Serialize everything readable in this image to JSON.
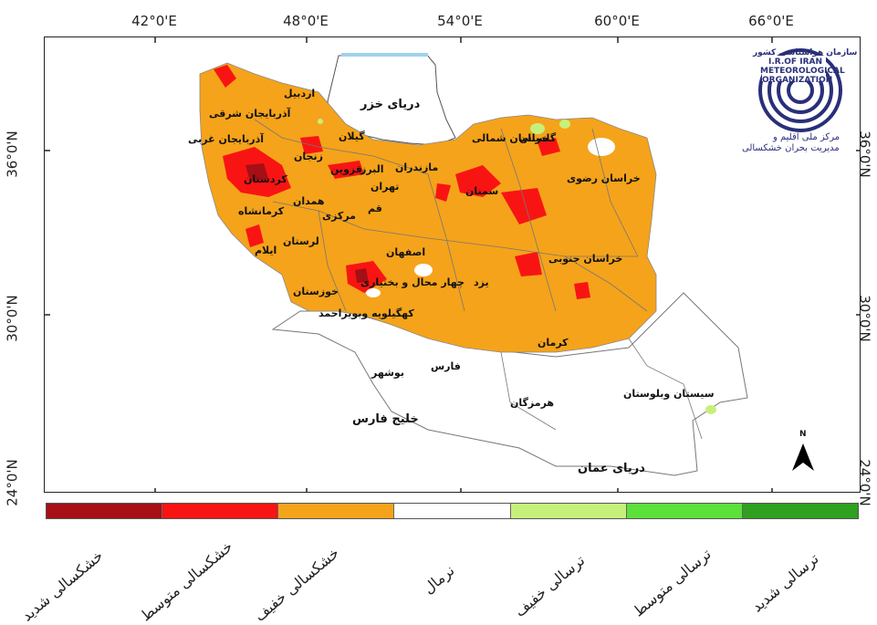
{
  "map": {
    "lon_ticks": [
      "42°0'E",
      "48°0'E",
      "54°0'E",
      "60°0'E",
      "66°0'E"
    ],
    "lat_ticks_left": [
      "36°0'N",
      "30°0'N",
      "24°0'N"
    ],
    "lat_ticks_right": [
      "36°0'N",
      "30°0'N",
      "24°0'N"
    ],
    "seas": {
      "caspian": "دریای خزر",
      "persian_gulf": "خلیج فارس",
      "oman": "دریای عمان"
    },
    "provinces": [
      "اردبیل",
      "آذربایجان شرقی",
      "آذربایجان غربی",
      "گیلان",
      "زنجان",
      "کردستان",
      "قزوین",
      "البرز",
      "مازندران",
      "تهران",
      "همدان",
      "کرمانشاه",
      "قم",
      "مرکزی",
      "لرستان",
      "ایلام",
      "اصفهان",
      "سمنان",
      "گلستان",
      "خراسان شمالی",
      "خراسان رضوی",
      "خراسان جنوبی",
      "یزد",
      "چهار محال و بختیاری",
      "خوزستان",
      "کهگیلویه وبویراحمد",
      "فارس",
      "بوشهر",
      "کرمان",
      "هرمزگان",
      "سیستان وبلوستان"
    ],
    "north_arrow": "N"
  },
  "logo": {
    "line1": "سازمان هواشناسی کشور",
    "line2": "I.R.OF IRAN",
    "line3": "METEOROLOGICAL",
    "line4": "ORGANIZATION",
    "center_fa_1": "مرکز ملی اقلیم و",
    "center_fa_2": "مدیریت بحران خشکسالی"
  },
  "legend": {
    "items": [
      {
        "label": "خشکسالی شدید",
        "color": "#a50f15"
      },
      {
        "label": "خشکسالی متوسط",
        "color": "#f91414"
      },
      {
        "label": "خشکسالی خفیف",
        "color": "#f5a31a"
      },
      {
        "label": "نرمال",
        "color": "#ffffff"
      },
      {
        "label": "ترسالی خفیف",
        "color": "#c7f07a"
      },
      {
        "label": "ترسالی متوسط",
        "color": "#5ce03a"
      },
      {
        "label": "ترسالی شدید",
        "color": "#2fa01f"
      }
    ]
  }
}
